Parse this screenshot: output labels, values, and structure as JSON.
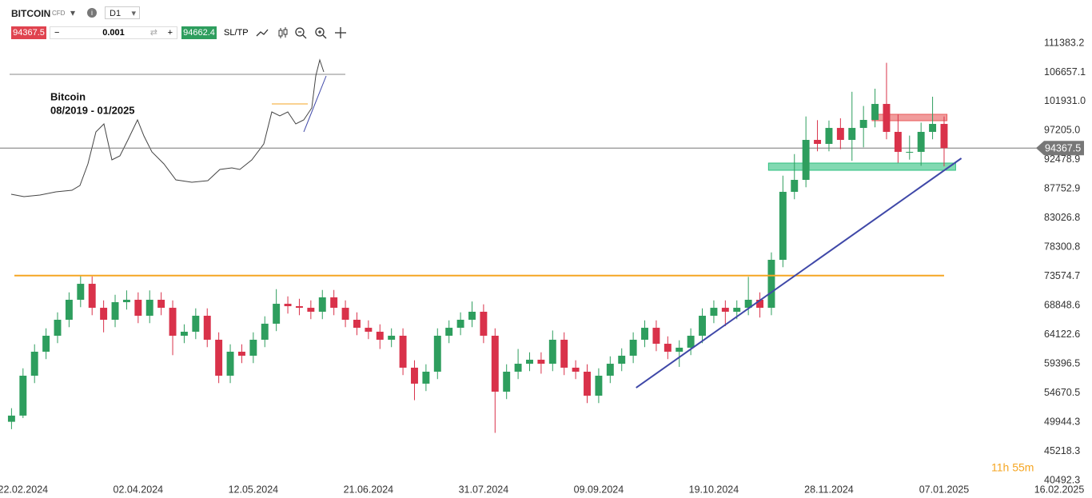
{
  "toolbar": {
    "symbol": "BITCOIN",
    "kind": "CFD",
    "timeframe": "D1",
    "bid": "94367.5",
    "quantity": "0.001",
    "ask": "94662.4",
    "sltp": "SL/TP"
  },
  "inset": {
    "title": "Bitcoin",
    "period": "08/2019 - 01/2025"
  },
  "countdown": "11h 55m",
  "chart_data": {
    "type": "candlestick",
    "up_color": "#2e9e5e",
    "down_color": "#d9324a",
    "x": [
      "2024-02-18",
      "2024-02-22",
      "2024-02-26",
      "2024-03-01",
      "2024-03-05",
      "2024-03-09",
      "2024-03-13",
      "2024-03-17",
      "2024-03-21",
      "2024-03-25",
      "2024-03-29",
      "2024-04-02",
      "2024-04-06",
      "2024-04-10",
      "2024-04-14",
      "2024-04-18",
      "2024-04-22",
      "2024-04-26",
      "2024-04-30",
      "2024-05-04",
      "2024-05-08",
      "2024-05-12",
      "2024-05-16",
      "2024-05-20",
      "2024-05-24",
      "2024-05-28",
      "2024-06-01",
      "2024-06-05",
      "2024-06-09",
      "2024-06-13",
      "2024-06-17",
      "2024-06-21",
      "2024-06-25",
      "2024-06-29",
      "2024-07-03",
      "2024-07-07",
      "2024-07-11",
      "2024-07-15",
      "2024-07-19",
      "2024-07-23",
      "2024-07-27",
      "2024-07-31",
      "2024-08-04",
      "2024-08-08",
      "2024-08-12",
      "2024-08-16",
      "2024-08-20",
      "2024-08-24",
      "2024-08-28",
      "2024-09-01",
      "2024-09-05",
      "2024-09-09",
      "2024-09-13",
      "2024-09-17",
      "2024-09-21",
      "2024-09-25",
      "2024-09-29",
      "2024-10-03",
      "2024-10-07",
      "2024-10-11",
      "2024-10-15",
      "2024-10-19",
      "2024-10-23",
      "2024-10-27",
      "2024-10-31",
      "2024-11-04",
      "2024-11-08",
      "2024-11-12",
      "2024-11-16",
      "2024-11-20",
      "2024-11-24",
      "2024-11-28",
      "2024-12-02",
      "2024-12-06",
      "2024-12-10",
      "2024-12-14",
      "2024-12-18",
      "2024-12-22",
      "2024-12-26",
      "2024-12-30",
      "2025-01-03",
      "2025-01-07"
    ],
    "open": [
      50000,
      51000,
      57470,
      61360,
      63950,
      66540,
      69780,
      72370,
      68480,
      66540,
      69390,
      69780,
      67190,
      69780,
      68480,
      63950,
      64600,
      67190,
      63300,
      57470,
      61360,
      60710,
      63300,
      65900,
      69130,
      68740,
      68480,
      67840,
      70170,
      68480,
      66540,
      65240,
      64600,
      63300,
      63950,
      58770,
      56180,
      58120,
      63950,
      65240,
      66540,
      67840,
      63950,
      54880,
      58120,
      59410,
      60060,
      59410,
      63300,
      58770,
      58120,
      54230,
      57470,
      59410,
      60710,
      63300,
      65240,
      62650,
      61360,
      62010,
      63950,
      67190,
      68480,
      67840,
      68480,
      69780,
      68480,
      76260,
      87280,
      89220,
      95700,
      95050,
      97640,
      95700,
      97640,
      98940,
      101530,
      97000,
      93760,
      93760,
      97000,
      98290
    ],
    "high": [
      52200,
      58670,
      62560,
      65150,
      67740,
      70980,
      73800,
      73570,
      69680,
      70590,
      71300,
      70980,
      71300,
      71000,
      69680,
      65800,
      68390,
      68390,
      64500,
      62560,
      62560,
      64500,
      67100,
      71500,
      70330,
      69940,
      69680,
      71370,
      71370,
      69680,
      67740,
      66440,
      65800,
      65150,
      65150,
      59970,
      59320,
      65150,
      66440,
      67740,
      69500,
      69040,
      65150,
      59320,
      61800,
      61260,
      61260,
      64800,
      64500,
      59970,
      59320,
      58670,
      60610,
      61910,
      64500,
      66440,
      66440,
      63850,
      63210,
      65150,
      68390,
      69680,
      69680,
      69680,
      73500,
      70980,
      77460,
      89900,
      93400,
      99500,
      98900,
      98840,
      99200,
      103500,
      101200,
      104000,
      108200,
      99800,
      96400,
      98500,
      102700,
      99500
    ],
    "low": [
      48800,
      50600,
      56270,
      60160,
      62750,
      65340,
      68580,
      67280,
      64500,
      65340,
      68190,
      65990,
      65990,
      67280,
      60800,
      62750,
      63400,
      62100,
      56270,
      56270,
      59510,
      59510,
      62100,
      64700,
      67540,
      67280,
      66640,
      66640,
      67280,
      65340,
      64040,
      63400,
      61800,
      62100,
      57570,
      53500,
      54980,
      56920,
      62750,
      64040,
      65340,
      62750,
      48200,
      53680,
      56920,
      58210,
      57800,
      58210,
      57570,
      56920,
      53030,
      53030,
      56270,
      58210,
      59510,
      62100,
      61450,
      60160,
      58900,
      60810,
      62750,
      65990,
      65500,
      66640,
      67280,
      66900,
      67280,
      75060,
      86080,
      88020,
      93850,
      93850,
      94200,
      92300,
      94500,
      97740,
      95800,
      92000,
      92500,
      91500,
      95800,
      91400
    ],
    "close": [
      51000,
      57470,
      61360,
      63950,
      66540,
      69780,
      72370,
      68480,
      66540,
      69390,
      69780,
      67190,
      69780,
      68480,
      63950,
      64600,
      67190,
      63300,
      57470,
      61360,
      60710,
      63300,
      65900,
      69130,
      68740,
      68480,
      67840,
      70170,
      68480,
      66540,
      65240,
      64600,
      63300,
      63950,
      58770,
      56180,
      58120,
      63950,
      65240,
      66540,
      67840,
      63950,
      54880,
      58120,
      59410,
      60060,
      59410,
      63300,
      58770,
      58120,
      54230,
      57470,
      59410,
      60710,
      63300,
      65240,
      62650,
      61360,
      62010,
      63950,
      67190,
      68480,
      67840,
      68480,
      69780,
      68480,
      76260,
      87280,
      89220,
      95700,
      95050,
      97640,
      95700,
      97640,
      98940,
      101530,
      97000,
      93760,
      93760,
      97000,
      98290,
      94367.5
    ],
    "xlim": [
      "2024-02-14",
      "2025-02-16"
    ],
    "xticks": [
      {
        "value": "2024-02-22",
        "label": "22.02.2024"
      },
      {
        "value": "2024-04-02",
        "label": "02.04.2024"
      },
      {
        "value": "2024-05-12",
        "label": "12.05.2024"
      },
      {
        "value": "2024-06-21",
        "label": "21.06.2024"
      },
      {
        "value": "2024-07-31",
        "label": "31.07.2024"
      },
      {
        "value": "2024-09-09",
        "label": "09.09.2024"
      },
      {
        "value": "2024-10-19",
        "label": "19.10.2024"
      },
      {
        "value": "2024-11-28",
        "label": "28.11.2024"
      },
      {
        "value": "2025-01-07",
        "label": "07.01.2025"
      },
      {
        "value": "2025-02-16",
        "label": "16.02.2025"
      }
    ],
    "ylim": [
      40492.3,
      118381
    ],
    "yticks": [
      40492.3,
      45218.3,
      49944.3,
      54670.5,
      59396.5,
      64122.6,
      68848.6,
      73574.7,
      78300.8,
      83026.8,
      87752.9,
      92478.9,
      {
        "value": 97205,
        "label": "97205.0"
      },
      {
        "value": 101931,
        "label": "101931.0"
      },
      106657.1,
      111383.2
    ],
    "price_line": {
      "value": 94367.5,
      "color": "#777777"
    },
    "resistance": {
      "x": [
        "2024-02-19",
        "2025-01-07"
      ],
      "y": [
        73700,
        73700
      ],
      "color": "#f5a623"
    },
    "trendline": {
      "x": [
        "2024-09-22",
        "2025-01-13"
      ],
      "y": [
        55525,
        92720
      ],
      "color": "#3f48a8"
    },
    "zones": [
      {
        "x": [
          "2024-11-07",
          "2025-01-11"
        ],
        "y": [
          90776,
          91942
        ],
        "color": "#2fbf7f"
      },
      {
        "x": [
          "2024-12-13",
          "2025-01-08"
        ],
        "y": [
          98812,
          99849
        ],
        "color": "#e85a5a"
      }
    ]
  }
}
